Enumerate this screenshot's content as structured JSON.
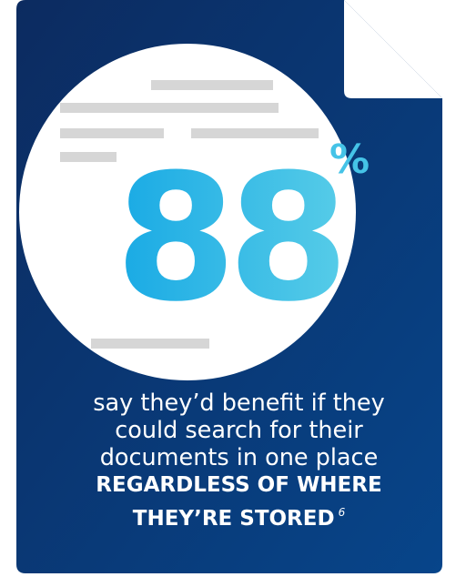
{
  "colors": {
    "doc_body_top": "#0c2b60",
    "doc_body_bottom": "#07458a",
    "dog_ear_fold": "#ffffff",
    "circle": "#ffffff",
    "text_lines": "#d6d6d6",
    "number_gradient_start": "#12a6e4",
    "number_gradient_end": "#5ccfe8",
    "unit": "#45c3e7",
    "caption": "#ffffff"
  },
  "icons": {
    "document": "document-icon",
    "fold": "folded-corner-icon"
  },
  "stat": {
    "value": "88",
    "unit": "%"
  },
  "caption": {
    "line1": "say they’d benefit if they",
    "line2": "could search for their",
    "line3": "documents in one place",
    "emphasis1": "REGARDLESS OF WHERE",
    "emphasis2": "THEY’RE STORED",
    "footnote": "6"
  }
}
